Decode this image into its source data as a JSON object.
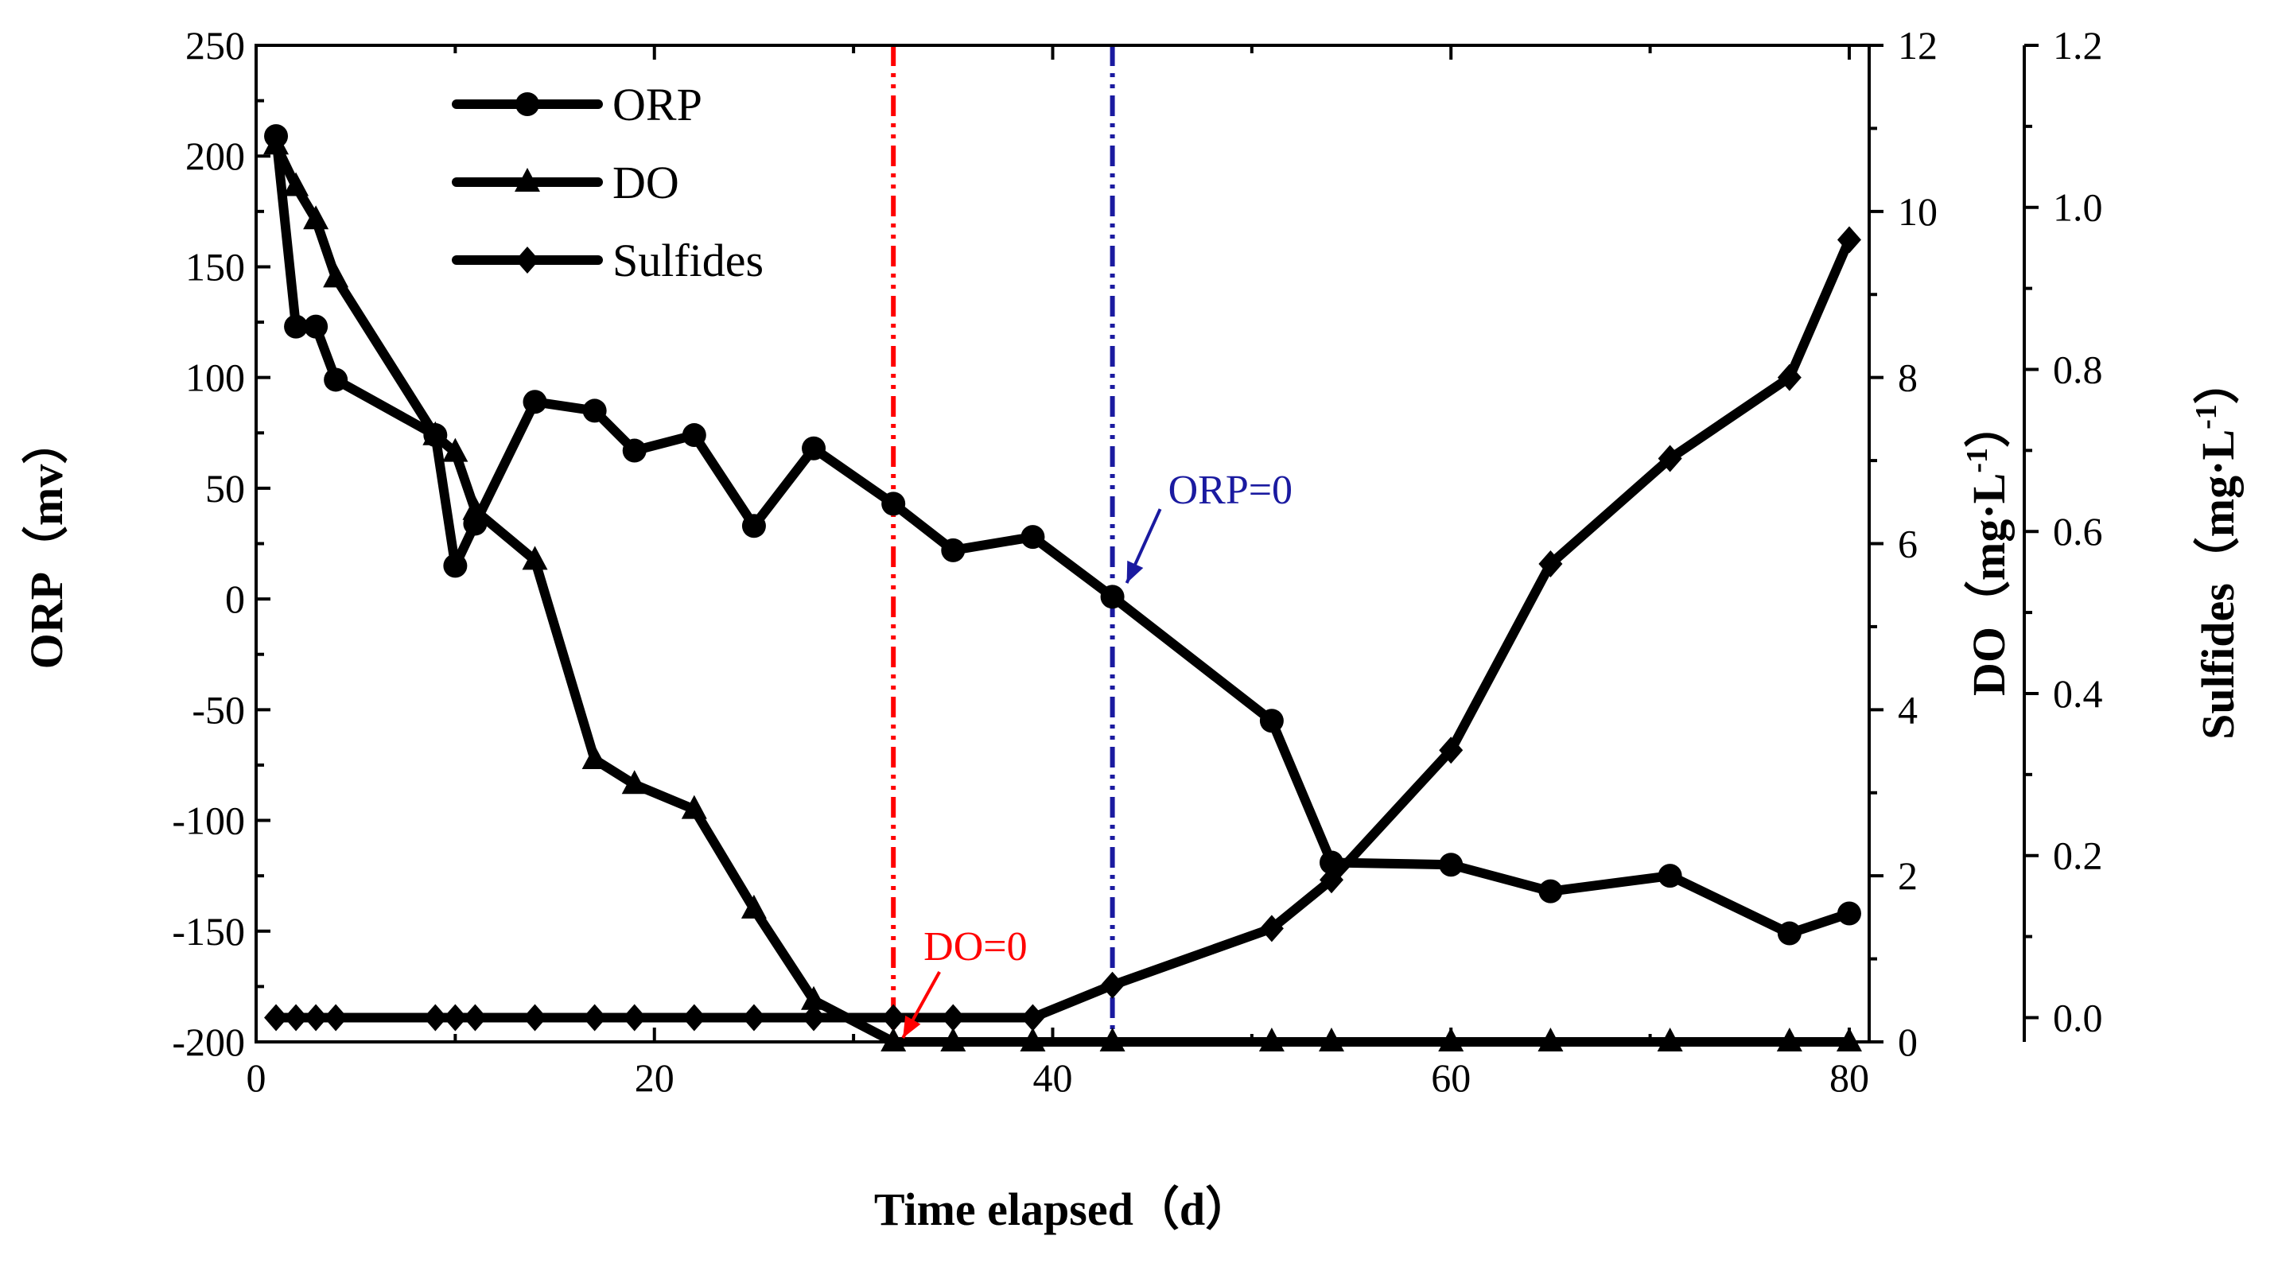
{
  "chart_data": {
    "type": "line",
    "x_axis": {
      "label": "Time elapsed（d）",
      "lim": [
        0,
        81
      ],
      "ticks": [
        0,
        20,
        40,
        60,
        80
      ]
    },
    "y_axes": {
      "orp": {
        "label": "ORP（mv）",
        "lim": [
          -200,
          250
        ],
        "ticks": [
          -200,
          -150,
          -100,
          -50,
          0,
          50,
          100,
          150,
          200,
          250
        ]
      },
      "do": {
        "label": "DO（mg·L",
        "sup": "-1",
        "close": "）",
        "lim": [
          0,
          12
        ],
        "ticks": [
          0,
          2,
          4,
          6,
          8,
          10,
          12
        ]
      },
      "sulfides": {
        "label": "Sulfides（mg·L",
        "sup": "-1",
        "close": "）",
        "lim": [
          -0.03,
          1.2
        ],
        "ticks": [
          "0.0",
          "0.2",
          "0.4",
          "0.6",
          "0.8",
          "1.0",
          "1.2"
        ]
      }
    },
    "series": [
      {
        "name": "ORP",
        "marker": "circle",
        "axis": "orp",
        "x": [
          1,
          2,
          3,
          4,
          9,
          10,
          11,
          14,
          17,
          19,
          22,
          25,
          28,
          32,
          35,
          39,
          43,
          51,
          54,
          60,
          65,
          71,
          77,
          80
        ],
        "y": [
          209,
          123,
          123,
          99,
          74,
          15,
          34,
          89,
          85,
          67,
          74,
          33,
          68,
          43,
          22,
          28,
          1,
          -55,
          -119,
          -120,
          -132,
          -125,
          -151,
          -142
        ]
      },
      {
        "name": "DO",
        "marker": "triangle",
        "axis": "do",
        "x": [
          1,
          2,
          3,
          4,
          9,
          10,
          11,
          14,
          17,
          19,
          22,
          25,
          28,
          32,
          35,
          39,
          43,
          51,
          54,
          60,
          65,
          71,
          77,
          80
        ],
        "y": [
          10.8,
          10.3,
          9.9,
          9.2,
          7.3,
          7.1,
          6.4,
          5.8,
          3.4,
          3.1,
          2.8,
          1.6,
          0.5,
          0.0,
          0.0,
          0.0,
          0.0,
          0.0,
          0.0,
          0.0,
          0.0,
          0.0,
          0.0,
          0.0
        ]
      },
      {
        "name": "Sulfides",
        "marker": "diamond",
        "axis": "sulfides",
        "x": [
          1,
          2,
          3,
          4,
          9,
          10,
          11,
          14,
          17,
          19,
          22,
          25,
          28,
          32,
          35,
          39,
          43,
          51,
          54,
          60,
          65,
          71,
          77,
          80
        ],
        "y": [
          0.0,
          0.0,
          0.0,
          0.0,
          0.0,
          0.0,
          0.0,
          0.0,
          0.0,
          0.0,
          0.0,
          0.0,
          0.0,
          0.0,
          0.0,
          0.0,
          0.04,
          0.11,
          0.17,
          0.33,
          0.56,
          0.69,
          0.79,
          0.96
        ]
      }
    ],
    "vlines": [
      {
        "x": 32,
        "color": "#ff0000",
        "annotation": "DO=0"
      },
      {
        "x": 43,
        "color": "#1a1aa0",
        "annotation": "ORP=0"
      }
    ],
    "legend": {
      "position": "top-left",
      "items": [
        "ORP",
        "DO",
        "Sulfides"
      ]
    }
  }
}
